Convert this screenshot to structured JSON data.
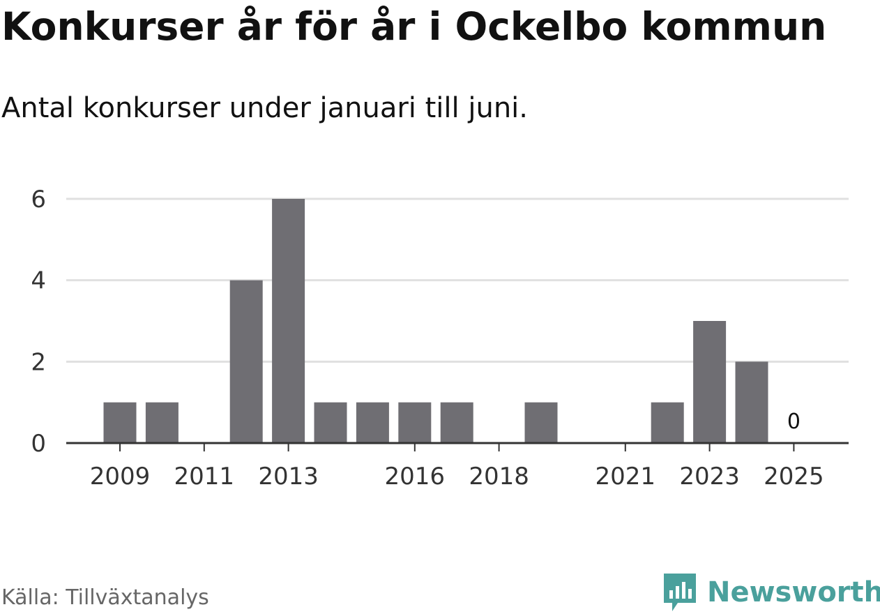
{
  "title": "Konkurser år för år i Ockelbo kommun",
  "subtitle": "Antal konkurser under januari till juni.",
  "source": "Källa: Tillväxtanalys",
  "brand": {
    "name": "Newsworthy",
    "icon": "newsworthy-logo-icon",
    "color": "#4aa09c"
  },
  "colors": {
    "bar": "#6f6e73",
    "grid": "#e0e0e0",
    "axis": "#333333"
  },
  "chart_data": {
    "type": "bar",
    "categories": [
      "2009",
      "2010",
      "2011",
      "2012",
      "2013",
      "2014",
      "2015",
      "2016",
      "2017",
      "2018",
      "2019",
      "2020",
      "2021",
      "2022",
      "2023",
      "2024",
      "2025"
    ],
    "values": [
      1,
      1,
      0,
      4,
      6,
      1,
      1,
      1,
      1,
      0,
      1,
      0,
      0,
      1,
      3,
      2,
      0
    ],
    "x_tick_labels": [
      "2009",
      "2011",
      "2013",
      "2016",
      "2018",
      "2021",
      "2023",
      "2025"
    ],
    "y_ticks": [
      0,
      2,
      4,
      6
    ],
    "ylim": [
      0,
      6
    ],
    "grid": true,
    "annotations": [
      {
        "category": "2025",
        "text": "0"
      }
    ],
    "xlabel": "",
    "ylabel": ""
  }
}
